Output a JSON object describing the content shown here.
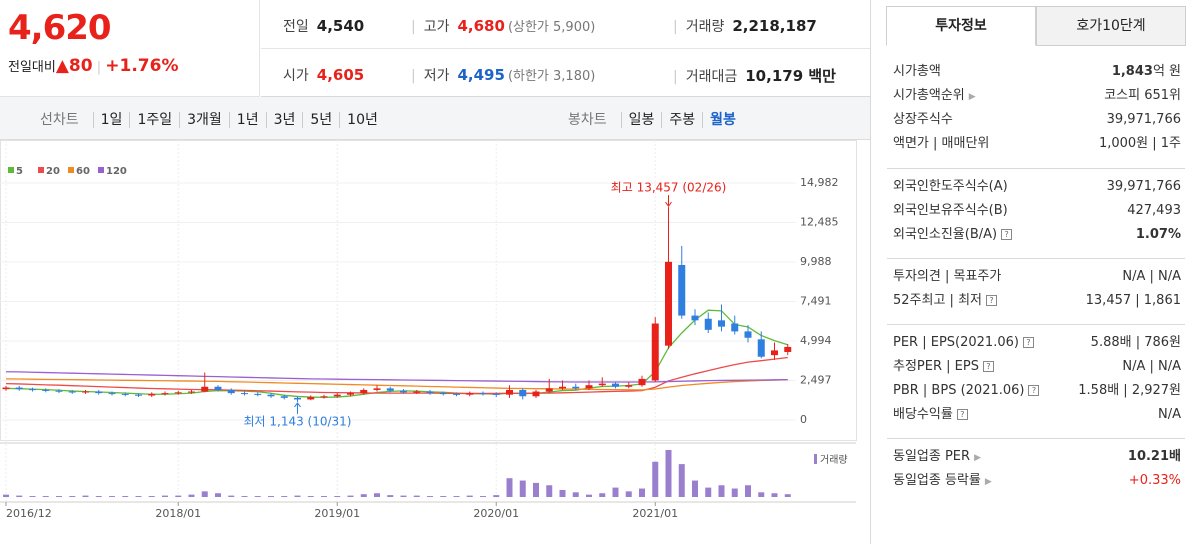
{
  "header": {
    "price": "4,620",
    "change_label": "전일대비",
    "change": "80",
    "change_rate": "+1.76%"
  },
  "info": [
    [
      {
        "label": "전일",
        "value": "4,540",
        "tone": "plain"
      },
      {
        "label": "고가",
        "value": "4,680",
        "extra": "(상한가 5,900)",
        "tone": "up"
      },
      {
        "label": "거래량",
        "value": "2,218,187",
        "tone": "plain"
      }
    ],
    [
      {
        "label": "시가",
        "value": "4,605",
        "tone": "up"
      },
      {
        "label": "저가",
        "value": "4,495",
        "extra": "(하한가 3,180)",
        "tone": "down"
      },
      {
        "label": "거래대금",
        "value": "10,179 백만",
        "tone": "plain"
      }
    ]
  ],
  "line_tabs": {
    "label": "선차트",
    "items": [
      "1일",
      "1주일",
      "3개월",
      "1년",
      "3년",
      "5년",
      "10년"
    ]
  },
  "candle_tabs": {
    "label": "봉차트",
    "items": [
      "일봉",
      "주봉",
      "월봉"
    ],
    "active": 2
  },
  "chart_data": {
    "type": "candlestick",
    "categories": [
      "2016/12",
      null,
      null,
      null,
      null,
      null,
      null,
      null,
      null,
      null,
      null,
      null,
      null,
      "2018/01",
      null,
      null,
      null,
      null,
      null,
      null,
      null,
      null,
      null,
      null,
      null,
      "2019/01",
      null,
      null,
      null,
      null,
      null,
      null,
      null,
      null,
      null,
      null,
      null,
      "2020/01",
      null,
      null,
      null,
      null,
      null,
      null,
      null,
      null,
      null,
      null,
      null,
      "2021/01",
      null,
      null,
      null,
      null,
      null,
      null,
      null,
      null,
      null,
      null
    ],
    "open": [
      1950,
      2050,
      1950,
      1900,
      1850,
      1800,
      1750,
      1800,
      1700,
      1650,
      1600,
      1550,
      1650,
      1700,
      1750,
      1800,
      2100,
      1900,
      1700,
      1650,
      1600,
      1500,
      1400,
      1300,
      1450,
      1500,
      1600,
      1700,
      1900,
      2000,
      1850,
      1750,
      1800,
      1700,
      1650,
      1600,
      1700,
      1650,
      1600,
      1900,
      1500,
      1800,
      2000,
      2100,
      2000,
      2200,
      2300,
      2100,
      2200,
      2500,
      4700,
      9800,
      6600,
      6400,
      6300,
      6100,
      5600,
      5100,
      4100,
      4300
    ],
    "high": [
      2150,
      2150,
      2050,
      2000,
      1950,
      1900,
      1900,
      1900,
      1800,
      1750,
      1700,
      1750,
      1800,
      1850,
      1900,
      3000,
      2200,
      2000,
      1800,
      1750,
      1700,
      1600,
      1500,
      1550,
      1600,
      1700,
      1800,
      2000,
      2200,
      2100,
      1950,
      1900,
      1900,
      1800,
      1750,
      1800,
      1800,
      1750,
      2200,
      2000,
      1900,
      2600,
      2500,
      2300,
      2500,
      2700,
      2400,
      2400,
      2800,
      6500,
      13457,
      11000,
      7000,
      6800,
      7300,
      6600,
      6000,
      5600,
      4900,
      4800
    ],
    "low": [
      1850,
      1850,
      1800,
      1750,
      1700,
      1650,
      1650,
      1600,
      1550,
      1500,
      1450,
      1450,
      1550,
      1600,
      1650,
      1750,
      1800,
      1600,
      1550,
      1500,
      1400,
      1300,
      1143,
      1250,
      1350,
      1400,
      1500,
      1600,
      1800,
      1750,
      1650,
      1650,
      1600,
      1550,
      1500,
      1500,
      1550,
      1450,
      1400,
      1300,
      1400,
      1700,
      1900,
      1900,
      1900,
      2100,
      2000,
      2000,
      2100,
      2400,
      4500,
      6400,
      6000,
      5500,
      5600,
      5400,
      4900,
      3900,
      3800,
      4100
    ],
    "close": [
      2050,
      1950,
      1900,
      1850,
      1800,
      1750,
      1800,
      1700,
      1650,
      1600,
      1550,
      1650,
      1700,
      1750,
      1800,
      2100,
      1900,
      1700,
      1650,
      1600,
      1500,
      1400,
      1300,
      1450,
      1500,
      1600,
      1700,
      1900,
      2000,
      1850,
      1750,
      1800,
      1700,
      1650,
      1600,
      1700,
      1650,
      1600,
      1900,
      1500,
      1800,
      2000,
      2100,
      2000,
      2200,
      2300,
      2100,
      2200,
      2600,
      6100,
      10000,
      6600,
      6300,
      5700,
      5900,
      5600,
      5200,
      4000,
      4400,
      4620
    ],
    "up_color": "#e8221b",
    "down_color": "#2e7fe0",
    "series": [
      {
        "name": "5",
        "color": "#5dbb3a",
        "values": [
          2000,
          1980,
          1950,
          1920,
          1880,
          1830,
          1800,
          1770,
          1740,
          1700,
          1660,
          1630,
          1630,
          1660,
          1700,
          1800,
          1860,
          1850,
          1830,
          1790,
          1690,
          1560,
          1490,
          1450,
          1430,
          1450,
          1520,
          1630,
          1740,
          1810,
          1840,
          1820,
          1780,
          1750,
          1700,
          1660,
          1660,
          1640,
          1690,
          1670,
          1690,
          1760,
          1860,
          1880,
          2020,
          2120,
          2140,
          2180,
          2280,
          3060,
          4560,
          5500,
          6320,
          6940,
          6900,
          6040,
          5880,
          5340,
          5020,
          4760
        ]
      },
      {
        "name": "20",
        "color": "#ef4a4a",
        "values": [
          2300,
          2280,
          2250,
          2220,
          2200,
          2170,
          2140,
          2110,
          2080,
          2050,
          2020,
          1990,
          1970,
          1950,
          1930,
          1920,
          1910,
          1890,
          1870,
          1850,
          1830,
          1800,
          1780,
          1760,
          1740,
          1730,
          1720,
          1710,
          1700,
          1700,
          1700,
          1700,
          1700,
          1690,
          1680,
          1680,
          1680,
          1680,
          1690,
          1690,
          1690,
          1700,
          1720,
          1740,
          1760,
          1790,
          1810,
          1830,
          1860,
          2070,
          2470,
          2700,
          2920,
          3120,
          3320,
          3500,
          3660,
          3750,
          3850,
          3950
        ]
      },
      {
        "name": "60",
        "color": "#f08a24",
        "values": [
          2600,
          2590,
          2580,
          2570,
          2560,
          2550,
          2540,
          2530,
          2520,
          2510,
          2500,
          2490,
          2480,
          2470,
          2460,
          2450,
          2440,
          2420,
          2400,
          2380,
          2360,
          2340,
          2320,
          2300,
          2280,
          2260,
          2240,
          2220,
          2200,
          2180,
          2160,
          2140,
          2120,
          2100,
          2080,
          2060,
          2040,
          2020,
          2000,
          1990,
          1980,
          1970,
          1960,
          1950,
          1940,
          1930,
          1920,
          1910,
          1900,
          1960,
          2080,
          2180,
          2250,
          2320,
          2380,
          2430,
          2470,
          2500,
          2520,
          2550
        ]
      },
      {
        "name": "120",
        "color": "#9a5fd0",
        "values": [
          3050,
          3040,
          3020,
          3000,
          2980,
          2960,
          2940,
          2920,
          2900,
          2880,
          2860,
          2840,
          2820,
          2800,
          2780,
          2760,
          2740,
          2720,
          2700,
          2680,
          2660,
          2640,
          2620,
          2600,
          2590,
          2580,
          2570,
          2560,
          2550,
          2540,
          2530,
          2520,
          2510,
          2500,
          2490,
          2480,
          2470,
          2460,
          2450,
          2440,
          2430,
          2420,
          2410,
          2400,
          2400,
          2400,
          2400,
          2400,
          2400,
          2410,
          2430,
          2450,
          2470,
          2490,
          2500,
          2510,
          2520,
          2530,
          2540,
          2550
        ]
      }
    ],
    "volume_label": "거래량",
    "volume_color": "#9b7fcf",
    "volume": [
      5,
      3,
      2,
      2,
      2,
      2,
      3,
      2,
      2,
      2,
      2,
      2,
      3,
      3,
      5,
      12,
      8,
      3,
      2,
      2,
      2,
      2,
      3,
      2,
      2,
      2,
      3,
      6,
      8,
      4,
      3,
      3,
      2,
      2,
      2,
      3,
      2,
      4,
      40,
      35,
      30,
      25,
      15,
      10,
      5,
      8,
      20,
      12,
      18,
      75,
      100,
      70,
      35,
      20,
      25,
      18,
      25,
      10,
      8,
      6
    ],
    "ylim": [
      0,
      14982
    ],
    "yticks": [
      0,
      {
        "value": 2497,
        "label": "2,497"
      },
      {
        "value": 4994,
        "label": "4,994"
      },
      {
        "value": 7491,
        "label": "7,491"
      },
      {
        "value": 9988,
        "label": "9,988"
      },
      {
        "value": 12485,
        "label": "12,485"
      },
      {
        "value": 14982,
        "label": "14,982"
      }
    ],
    "annotations": [
      {
        "text": "최고 13,457 (02/26)",
        "index": 50,
        "at": "high",
        "color": "#e8221b"
      },
      {
        "text": "최저 1,143 (10/31)",
        "index": 22,
        "at": "low",
        "color": "#2e7fe0"
      }
    ]
  },
  "side": {
    "tabs": [
      "투자정보",
      "호가10단계"
    ],
    "groups": [
      [
        {
          "label": "시가총액",
          "value": "1,843",
          "unit": "억 원",
          "strong": true
        },
        {
          "label": "시가총액순위",
          "arrow": true,
          "value": "코스피 651위"
        },
        {
          "label": "상장주식수",
          "value": "39,971,766"
        },
        {
          "label": "액면가 | 매매단위",
          "value": "1,000원 | 1주"
        }
      ],
      [
        {
          "label": "외국인한도주식수(A)",
          "value": "39,971,766"
        },
        {
          "label": "외국인보유주식수(B)",
          "value": "427,493"
        },
        {
          "label": "외국인소진율(B/A)",
          "help": true,
          "value": "1.07%",
          "strong": true
        }
      ],
      [
        {
          "label": "투자의견 | 목표주가",
          "value": "N/A | N/A"
        },
        {
          "label": "52주최고 | 최저",
          "help": true,
          "value": "13,457 | 1,861"
        }
      ],
      [
        {
          "label": "PER | EPS(2021.06)",
          "help": true,
          "value": "5.88배 | 786원"
        },
        {
          "label": "추정PER | EPS",
          "help": true,
          "value": "N/A | N/A"
        },
        {
          "label": "PBR | BPS (2021.06)",
          "help": true,
          "value": "1.58배 | 2,927원"
        },
        {
          "label": "배당수익률",
          "help": true,
          "value": "N/A"
        }
      ],
      [
        {
          "label": "동일업종 PER",
          "arrow": true,
          "value": "10.21배",
          "strong": true
        },
        {
          "label": "동일업종 등락률",
          "arrow": true,
          "value": "+0.33%",
          "up": true
        }
      ]
    ]
  }
}
